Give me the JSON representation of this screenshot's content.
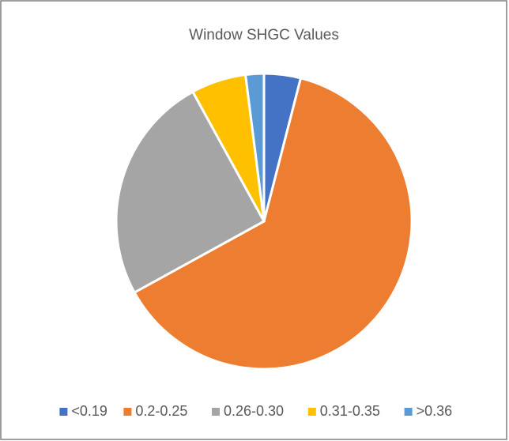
{
  "chart_data": {
    "type": "pie",
    "title": "Window SHGC Values",
    "categories": [
      "<0.19",
      "0.2-0.25",
      "0.26-0.30",
      "0.31-0.35",
      ">0.36"
    ],
    "values": [
      4,
      63,
      25,
      6,
      2
    ],
    "colors": [
      "#4472c4",
      "#ed7d31",
      "#a5a5a5",
      "#ffc000",
      "#5b9bd5"
    ],
    "legend": "bottom"
  }
}
